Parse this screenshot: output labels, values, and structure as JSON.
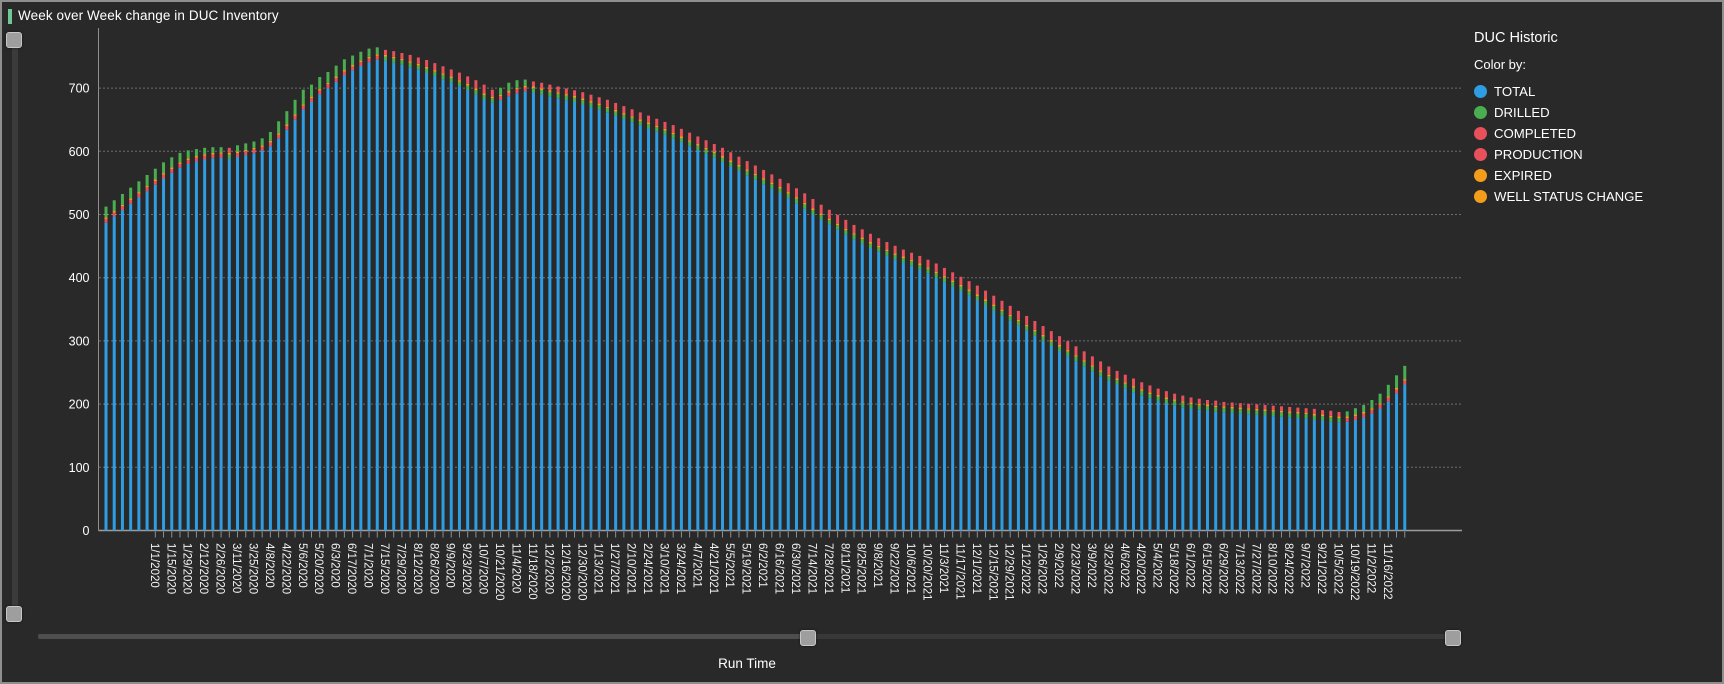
{
  "window": {
    "title": "Week over Week change in DUC Inventory",
    "accent_color": "#6fc997",
    "background": "#292929",
    "border_color": "#8f8f8f"
  },
  "legend": {
    "title": "DUC Historic",
    "color_by_label": "Color by:",
    "items": [
      {
        "label": "TOTAL",
        "color": "#2e9de3"
      },
      {
        "label": "DRILLED",
        "color": "#4aae50"
      },
      {
        "label": "COMPLETED",
        "color": "#e8505b"
      },
      {
        "label": "PRODUCTION",
        "color": "#e8505b"
      },
      {
        "label": "EXPIRED",
        "color": "#f49d1a"
      },
      {
        "label": "WELL STATUS CHANGE",
        "color": "#f49d1a"
      }
    ]
  },
  "x_axis": {
    "label": "Run Time",
    "tick_labels": [
      "1/1/2020",
      "1/15/2020",
      "1/29/2020",
      "2/12/2020",
      "2/26/2020",
      "3/11/2020",
      "3/25/2020",
      "4/8/2020",
      "4/22/2020",
      "5/6/2020",
      "5/20/2020",
      "6/3/2020",
      "6/17/2020",
      "7/1/2020",
      "7/15/2020",
      "7/29/2020",
      "8/12/2020",
      "8/26/2020",
      "9/9/2020",
      "9/23/2020",
      "10/7/2020",
      "10/21/2020",
      "11/4/2020",
      "11/18/2020",
      "12/2/2020",
      "12/16/2020",
      "12/30/2020",
      "1/13/2021",
      "1/27/2021",
      "2/10/2021",
      "2/24/2021",
      "3/10/2021",
      "3/24/2021",
      "4/7/2021",
      "4/21/2021",
      "5/5/2021",
      "5/19/2021",
      "6/2/2021",
      "6/16/2021",
      "6/30/2021",
      "7/14/2021",
      "7/28/2021",
      "8/11/2021",
      "8/25/2021",
      "9/8/2021",
      "9/22/2021",
      "10/6/2021",
      "10/20/2021",
      "11/3/2021",
      "11/17/2021",
      "12/1/2021",
      "12/15/2021",
      "12/29/2021",
      "1/12/2022",
      "1/26/2022",
      "2/9/2022",
      "2/23/2022",
      "3/9/2022",
      "3/23/2022",
      "4/6/2022",
      "4/20/2022",
      "5/4/2022",
      "5/18/2022",
      "6/1/2022",
      "6/15/2022",
      "6/29/2022",
      "7/13/2022",
      "7/27/2022",
      "8/10/2022",
      "8/24/2022",
      "9/7/2022",
      "9/21/2022",
      "10/5/2022",
      "10/19/2022",
      "11/2/2022",
      "11/16/2022"
    ],
    "first_labeled_bar_index": 6,
    "label_every_n_bars": 2
  },
  "y_axis": {
    "ticks": [
      0,
      100,
      200,
      300,
      400,
      500,
      600,
      700
    ]
  },
  "chart_data": {
    "type": "bar",
    "title": "Week over Week change in DUC Inventory",
    "xlabel": "Run Time",
    "ylabel": "",
    "ylim": [
      0,
      770
    ],
    "grid": "horizontal-dotted",
    "legend_position": "right",
    "x_start_date": "11/20/2019",
    "x_end_date": "11/30/2022",
    "x_interval": "weekly",
    "series": [
      {
        "name": "TOTAL",
        "color": "#2e9de3",
        "values": [
          487,
          497,
          507,
          517,
          527,
          537,
          547,
          557,
          566,
          574,
          580,
          584,
          587,
          589,
          590,
          588,
          591,
          594,
          597,
          601,
          608,
          620,
          634,
          650,
          666,
          678,
          690,
          700,
          710,
          720,
          728,
          735,
          741,
          745,
          743,
          740,
          737,
          733,
          729,
          724,
          719,
          714,
          709,
          703,
          697,
          690,
          682,
          677,
          681,
          687,
          692,
          695,
          693,
          690,
          687,
          684,
          681,
          678,
          674,
          670,
          666,
          661,
          656,
          651,
          646,
          641,
          636,
          631,
          626,
          620,
          614,
          608,
          602,
          596,
          590,
          583,
          576,
          569,
          562,
          555,
          548,
          541,
          534,
          526,
          518,
          509,
          500,
          492,
          484,
          476,
          468,
          461,
          454,
          447,
          441,
          435,
          429,
          424,
          419,
          413,
          407,
          400,
          393,
          386,
          379,
          372,
          364,
          356,
          348,
          340,
          332,
          324,
          316,
          308,
          300,
          292,
          284,
          276,
          268,
          260,
          252,
          244,
          237,
          231,
          225,
          219,
          214,
          209,
          205,
          201,
          198,
          195,
          193,
          191,
          190,
          188,
          187,
          186,
          185,
          184,
          183,
          182,
          181,
          180,
          179,
          178,
          177,
          175,
          174,
          172,
          171,
          172,
          175,
          179,
          185,
          193,
          204,
          217,
          231
        ]
      }
    ],
    "weekly_change_caps": {
      "drilled_color": "#4aae50",
      "completed_color": "#e8505b",
      "expired_color": "#f49d1a",
      "drilled_base": 7,
      "completed_base": 6,
      "expired_tick": 2.5
    }
  },
  "sliders": {
    "x_slider": {
      "handle_positions": [
        0.544,
        1.0
      ]
    },
    "y_slider": {
      "handle_positions": [
        0.0,
        1.0
      ]
    }
  }
}
